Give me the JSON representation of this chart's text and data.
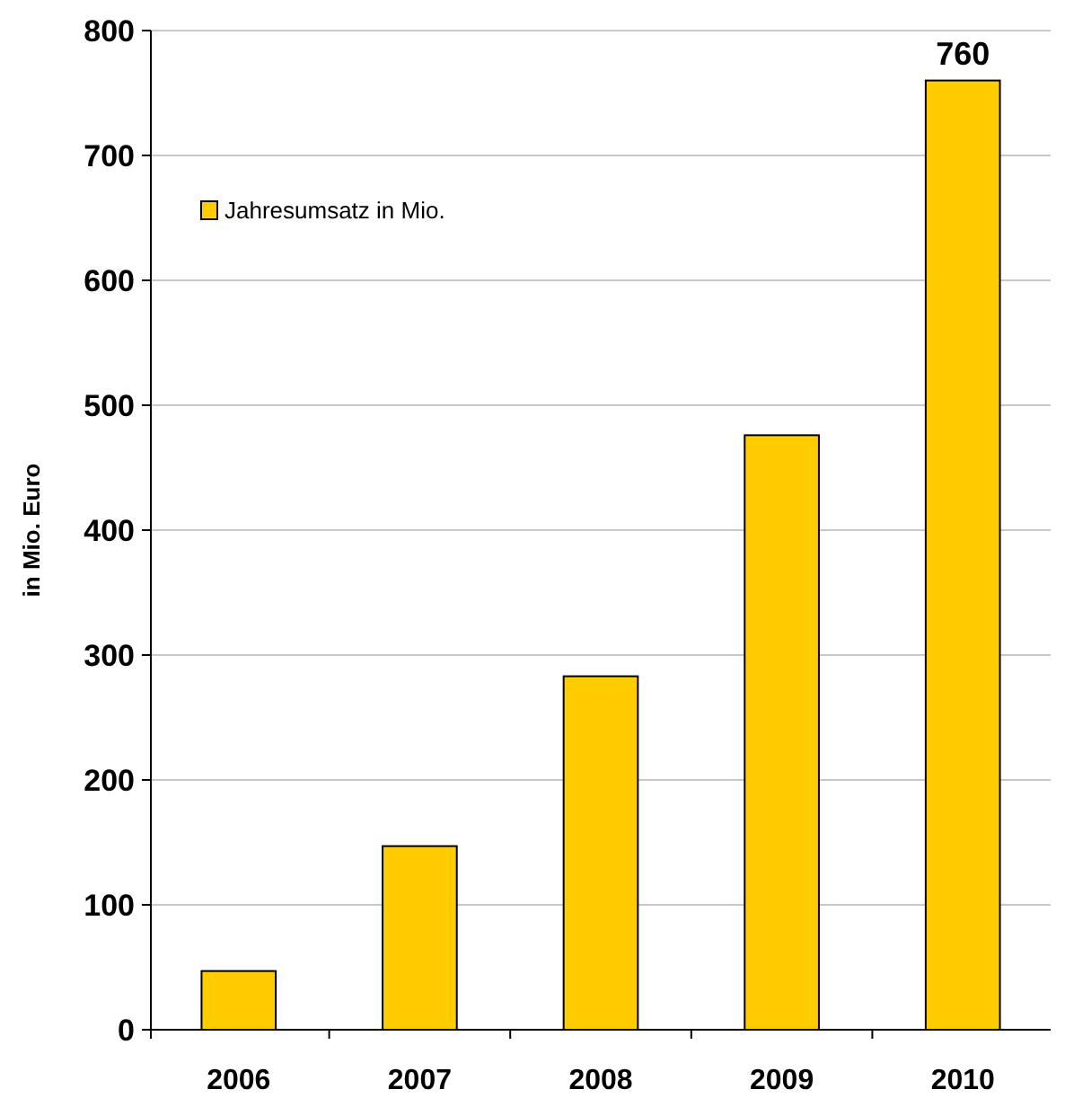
{
  "chart_data": {
    "type": "bar",
    "ylabel": "in Mio. Euro",
    "categories": [
      "2006",
      "2007",
      "2008",
      "2009",
      "2010"
    ],
    "series": [
      {
        "name": "Jahresumsatz in Mio.",
        "color": "#ffcc00",
        "values": [
          47,
          147,
          283,
          476,
          760
        ],
        "value_labels": [
          null,
          null,
          null,
          null,
          "760"
        ]
      }
    ],
    "ylim": [
      0,
      800
    ],
    "yticks": [
      0,
      100,
      200,
      300,
      400,
      500,
      600,
      700,
      800
    ],
    "grid": "y",
    "legend": "top left"
  }
}
